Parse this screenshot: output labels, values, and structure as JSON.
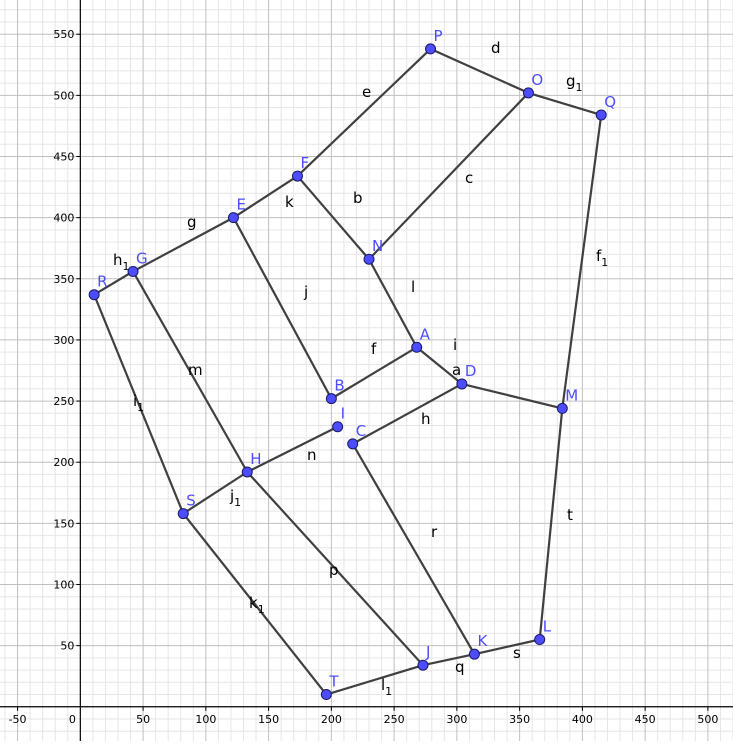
{
  "x_ticks": [
    "-50",
    "0",
    "50",
    "100",
    "150",
    "200",
    "250",
    "300",
    "350",
    "400",
    "450",
    "500"
  ],
  "y_ticks": [
    "50",
    "100",
    "150",
    "200",
    "250",
    "300",
    "350",
    "400",
    "450",
    "500",
    "550"
  ],
  "x_tick_values": [
    -50,
    0,
    50,
    100,
    150,
    200,
    250,
    300,
    350,
    400,
    450,
    500
  ],
  "y_tick_values": [
    50,
    100,
    150,
    200,
    250,
    300,
    350,
    400,
    450,
    500,
    550
  ],
  "view": {
    "xmin": -64,
    "xmax": 520,
    "ymin": -28,
    "ymax": 578
  },
  "colors": {
    "point_fill": "#4d4dff",
    "point_label": "#4d4dff",
    "segment": "#404040",
    "grid_minor": "#e6e6e6",
    "grid_major": "#c0c0c0"
  },
  "points": [
    {
      "name": "A",
      "x": 268,
      "y": 294
    },
    {
      "name": "B",
      "x": 200,
      "y": 252
    },
    {
      "name": "C",
      "x": 217,
      "y": 215
    },
    {
      "name": "D",
      "x": 304,
      "y": 264
    },
    {
      "name": "E",
      "x": 122,
      "y": 400
    },
    {
      "name": "F",
      "x": 173,
      "y": 434
    },
    {
      "name": "G",
      "x": 42,
      "y": 356
    },
    {
      "name": "H",
      "x": 133,
      "y": 192
    },
    {
      "name": "I",
      "x": 205,
      "y": 229
    },
    {
      "name": "J",
      "x": 273,
      "y": 34
    },
    {
      "name": "K",
      "x": 314,
      "y": 43
    },
    {
      "name": "L",
      "x": 366,
      "y": 55
    },
    {
      "name": "M",
      "x": 384,
      "y": 244
    },
    {
      "name": "N",
      "x": 230,
      "y": 366
    },
    {
      "name": "O",
      "x": 357,
      "y": 502
    },
    {
      "name": "P",
      "x": 279,
      "y": 538
    },
    {
      "name": "Q",
      "x": 415,
      "y": 484
    },
    {
      "name": "R",
      "x": 11,
      "y": 337
    },
    {
      "name": "S",
      "x": 82,
      "y": 158
    },
    {
      "name": "T",
      "x": 196,
      "y": 10
    }
  ],
  "segments": [
    {
      "name": "a",
      "from": "D",
      "to": "M"
    },
    {
      "name": "b",
      "from": "F",
      "to": "N"
    },
    {
      "name": "c",
      "from": "N",
      "to": "O"
    },
    {
      "name": "d",
      "from": "P",
      "to": "O"
    },
    {
      "name": "e",
      "from": "F",
      "to": "P"
    },
    {
      "name": "f",
      "from": "B",
      "to": "A"
    },
    {
      "name": "g",
      "from": "G",
      "to": "E"
    },
    {
      "name": "h",
      "from": "C",
      "to": "D"
    },
    {
      "name": "i",
      "from": "A",
      "to": "D"
    },
    {
      "name": "j",
      "from": "E",
      "to": "B"
    },
    {
      "name": "k",
      "from": "E",
      "to": "F"
    },
    {
      "name": "l",
      "from": "N",
      "to": "A"
    },
    {
      "name": "m",
      "from": "G",
      "to": "H"
    },
    {
      "name": "n",
      "from": "H",
      "to": "I"
    },
    {
      "name": "p",
      "from": "H",
      "to": "J"
    },
    {
      "name": "q",
      "from": "J",
      "to": "K"
    },
    {
      "name": "r",
      "from": "C",
      "to": "K"
    },
    {
      "name": "s",
      "from": "K",
      "to": "L"
    },
    {
      "name": "t",
      "from": "L",
      "to": "M"
    },
    {
      "name": "f",
      "sub": "1",
      "from": "M",
      "to": "Q"
    },
    {
      "name": "g",
      "sub": "1",
      "from": "O",
      "to": "Q"
    },
    {
      "name": "h",
      "sub": "1",
      "from": "R",
      "to": "G"
    },
    {
      "name": "i",
      "sub": "1",
      "from": "R",
      "to": "S"
    },
    {
      "name": "j",
      "sub": "1",
      "from": "S",
      "to": "H"
    },
    {
      "name": "k",
      "sub": "1",
      "from": "S",
      "to": "T"
    },
    {
      "name": "l",
      "sub": "1",
      "from": "T",
      "to": "J"
    }
  ],
  "segment_label_positions": [
    {
      "x": 452,
      "y": 375
    },
    {
      "x": 353,
      "y": 203
    },
    {
      "x": 465,
      "y": 183
    },
    {
      "x": 491,
      "y": 53
    },
    {
      "x": 362,
      "y": 97
    },
    {
      "x": 371,
      "y": 354
    },
    {
      "x": 187,
      "y": 227
    },
    {
      "x": 421,
      "y": 424
    },
    {
      "x": 453,
      "y": 350
    },
    {
      "x": 304,
      "y": 297
    },
    {
      "x": 285,
      "y": 207
    },
    {
      "x": 411,
      "y": 292
    },
    {
      "x": 188,
      "y": 375
    },
    {
      "x": 307,
      "y": 460
    },
    {
      "x": 329,
      "y": 575
    },
    {
      "x": 455,
      "y": 672
    },
    {
      "x": 431,
      "y": 537
    },
    {
      "x": 513,
      "y": 658
    },
    {
      "x": 567,
      "y": 520
    },
    {
      "x": 596,
      "y": 261
    },
    {
      "x": 566,
      "y": 86
    },
    {
      "x": 113,
      "y": 265
    },
    {
      "x": 133,
      "y": 406
    },
    {
      "x": 230,
      "y": 501
    },
    {
      "x": 249,
      "y": 608
    },
    {
      "x": 381,
      "y": 690
    }
  ]
}
